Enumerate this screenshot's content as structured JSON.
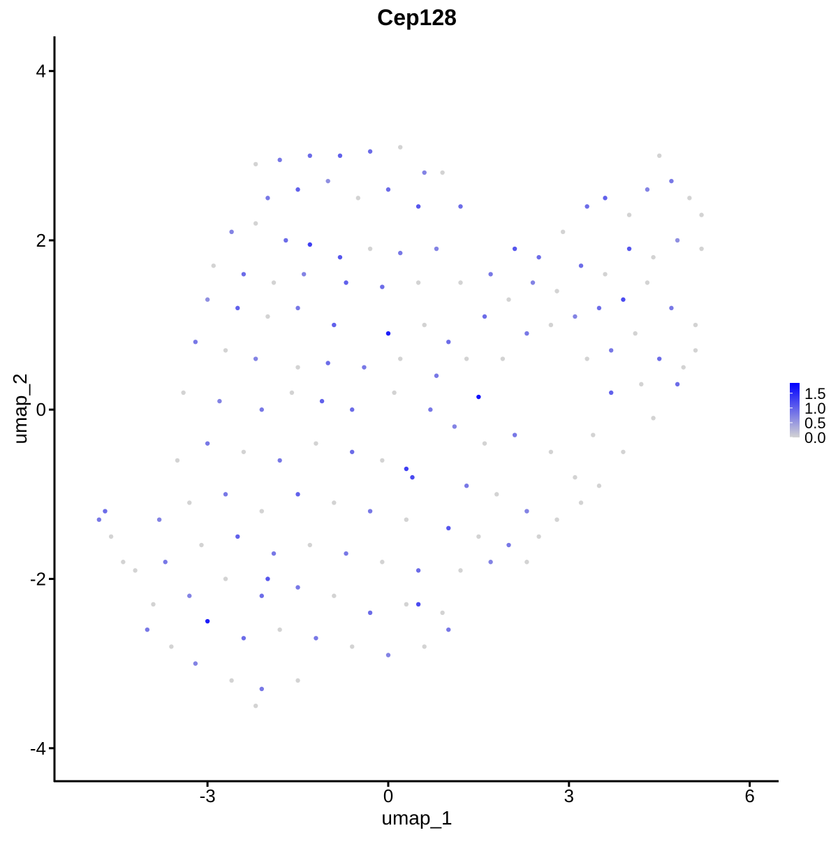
{
  "chart_data": {
    "type": "scatter",
    "title": "Cep128",
    "xlabel": "umap_1",
    "ylabel": "umap_2",
    "xlim": [
      -5.54,
      6.48
    ],
    "ylim": [
      -4.39,
      4.41
    ],
    "xticks": [
      -3,
      0,
      3,
      6
    ],
    "yticks": [
      -4,
      -2,
      0,
      2,
      4
    ],
    "colors": [
      "#d3d3d3",
      "#0000ff"
    ],
    "color_range": [
      0,
      1.85
    ],
    "color_ticks": [
      {
        "value": 0,
        "label": "0.0"
      },
      {
        "value": 0.5,
        "label": "0.5"
      },
      {
        "value": 1,
        "label": "1.0"
      },
      {
        "value": 1.5,
        "label": "1.5"
      }
    ],
    "x": [
      -2.2,
      -1.8,
      -1.3,
      -0.8,
      -0.3,
      0.2,
      0.6,
      0.9,
      -2.0,
      -1.5,
      -1.0,
      -0.5,
      0.0,
      0.5,
      1.2,
      -2.6,
      -2.2,
      -1.7,
      -1.3,
      -0.8,
      -0.3,
      0.2,
      0.8,
      -2.9,
      -2.4,
      -1.9,
      -1.4,
      -0.7,
      -0.1,
      0.5,
      -3.0,
      -2.5,
      -2.0,
      -1.5,
      -0.9,
      0.0,
      0.6,
      1.0,
      -3.2,
      -2.7,
      -2.2,
      -1.5,
      -1.0,
      -0.4,
      0.2,
      0.8,
      1.3,
      -3.4,
      -2.8,
      -2.1,
      -1.6,
      -1.1,
      -0.6,
      0.1,
      0.7,
      1.5,
      1.2,
      1.7,
      2.1,
      2.5,
      2.9,
      3.3,
      3.6,
      4.0,
      4.3,
      4.5,
      4.7,
      5.0,
      5.2,
      1.6,
      2.0,
      2.4,
      2.8,
      3.2,
      3.6,
      4.0,
      4.4,
      4.8,
      5.2,
      1.9,
      2.3,
      2.7,
      3.1,
      3.5,
      3.9,
      4.3,
      4.7,
      5.1,
      3.3,
      3.7,
      4.1,
      4.5,
      4.9,
      5.1,
      3.7,
      4.2,
      4.8,
      4.4,
      3.4,
      3.9,
      1.1,
      1.6,
      2.1,
      2.7,
      3.1,
      3.5,
      1.3,
      1.8,
      2.3,
      2.8,
      3.2,
      1.0,
      1.5,
      2.0,
      2.5,
      1.2,
      1.7,
      2.3,
      0.9,
      1.0,
      0.4,
      -0.1,
      -0.6,
      -1.2,
      -1.8,
      -2.4,
      -3.0,
      -3.5,
      0.3,
      -0.3,
      -0.9,
      -1.5,
      -2.1,
      -2.7,
      -3.3,
      -3.8,
      0.5,
      -0.1,
      -0.7,
      -1.3,
      -1.9,
      -2.5,
      -3.1,
      -3.7,
      -4.2,
      0.3,
      -0.3,
      -0.9,
      -1.5,
      -2.1,
      -2.7,
      -3.3,
      -3.9,
      0.6,
      0.0,
      -0.6,
      -1.2,
      -1.8,
      -2.4,
      -3.0,
      -3.6,
      -4.0,
      -1.5,
      -2.1,
      -2.6,
      -3.2,
      -2.2,
      -4.8,
      -4.7,
      -4.6,
      -4.4,
      0.5,
      -2.0,
      0.3
    ],
    "y": [
      2.9,
      2.95,
      3.0,
      3.0,
      3.05,
      3.1,
      2.8,
      2.8,
      2.5,
      2.6,
      2.7,
      2.5,
      2.6,
      2.4,
      2.4,
      2.1,
      2.2,
      2.0,
      1.95,
      1.8,
      1.9,
      1.85,
      1.9,
      1.7,
      1.6,
      1.5,
      1.6,
      1.5,
      1.45,
      1.5,
      1.3,
      1.2,
      1.1,
      1.2,
      1.0,
      0.9,
      1.0,
      0.8,
      0.8,
      0.7,
      0.6,
      0.5,
      0.55,
      0.5,
      0.6,
      0.4,
      0.6,
      0.2,
      0.1,
      0.0,
      0.2,
      0.1,
      0.0,
      0.2,
      0.0,
      0.15,
      1.5,
      1.6,
      1.9,
      1.8,
      2.1,
      2.4,
      2.5,
      2.3,
      2.6,
      3.0,
      2.7,
      2.5,
      2.3,
      1.1,
      1.3,
      1.5,
      1.4,
      1.7,
      1.6,
      1.9,
      1.8,
      2.0,
      1.9,
      0.6,
      0.9,
      1.0,
      1.1,
      1.2,
      1.3,
      1.5,
      1.2,
      1.0,
      0.6,
      0.7,
      0.9,
      0.6,
      0.5,
      0.7,
      0.2,
      0.3,
      0.3,
      -0.1,
      -0.3,
      -0.5,
      -0.2,
      -0.4,
      -0.3,
      -0.5,
      -0.8,
      -0.9,
      -0.9,
      -1.0,
      -1.2,
      -1.3,
      -1.1,
      -1.4,
      -1.5,
      -1.6,
      -1.5,
      -1.9,
      -1.8,
      -1.8,
      -2.4,
      -2.6,
      -0.8,
      -0.6,
      -0.5,
      -0.4,
      -0.6,
      -0.5,
      -0.4,
      -0.6,
      -1.3,
      -1.2,
      -1.1,
      -1.0,
      -1.2,
      -1.0,
      -1.1,
      -1.3,
      -1.9,
      -1.8,
      -1.7,
      -1.6,
      -1.7,
      -1.5,
      -1.6,
      -1.8,
      -1.9,
      -2.3,
      -2.4,
      -2.2,
      -2.1,
      -2.2,
      -2.0,
      -2.2,
      -2.3,
      -2.8,
      -2.9,
      -2.8,
      -2.7,
      -2.6,
      -2.7,
      -2.5,
      -2.8,
      -2.6,
      -3.2,
      -3.3,
      -3.2,
      -3.0,
      -3.5,
      -1.3,
      -1.2,
      -1.5,
      -1.8,
      -2.3,
      -2.0,
      -0.7
    ],
    "values": [
      0,
      0.8,
      0.9,
      1.0,
      0.9,
      0,
      0.7,
      0,
      0.8,
      1.0,
      0.6,
      0,
      0.9,
      1.1,
      0.9,
      0.7,
      0,
      0.9,
      1.3,
      1.1,
      0,
      0.8,
      0.7,
      0,
      0.9,
      0,
      0.7,
      1.0,
      0.9,
      0,
      0.6,
      1.0,
      0,
      0.8,
      1.0,
      1.6,
      0,
      0.9,
      0.8,
      0,
      0.7,
      0,
      0.9,
      0.8,
      0,
      0.8,
      0,
      0,
      0.7,
      0.8,
      0,
      1.0,
      0.9,
      0,
      0.8,
      1.7,
      0,
      0.8,
      1.1,
      0.9,
      0,
      0.9,
      1.0,
      0,
      0.7,
      0,
      0.8,
      0,
      0,
      0.9,
      0,
      0.7,
      0,
      0.9,
      0,
      1.1,
      0,
      0.6,
      0,
      0,
      0.8,
      0,
      0.7,
      0.9,
      1.2,
      0,
      0.8,
      0,
      0,
      0.8,
      0,
      0.9,
      0,
      0,
      1.0,
      0,
      0.9,
      0,
      0,
      0,
      0.7,
      0,
      0.8,
      0,
      0,
      0,
      0.8,
      0,
      0.7,
      0,
      0,
      1.1,
      0,
      0.8,
      0,
      0,
      0.7,
      0,
      0,
      0.8,
      1.2,
      0,
      0.9,
      0,
      0.8,
      0,
      0.8,
      0,
      0,
      0.8,
      0,
      1.0,
      0,
      0.8,
      0,
      0.7,
      0.9,
      0,
      0.8,
      0,
      0.8,
      1.0,
      0,
      0.8,
      0,
      0,
      0.9,
      0,
      0.8,
      0.9,
      0,
      0.7,
      0,
      0,
      0.7,
      0,
      0.8,
      0,
      0.9,
      1.6,
      0,
      0.8,
      0,
      0.8,
      0,
      0.7,
      0,
      0.8,
      0.9,
      0,
      0,
      1.2,
      1.1,
      1.3
    ]
  }
}
